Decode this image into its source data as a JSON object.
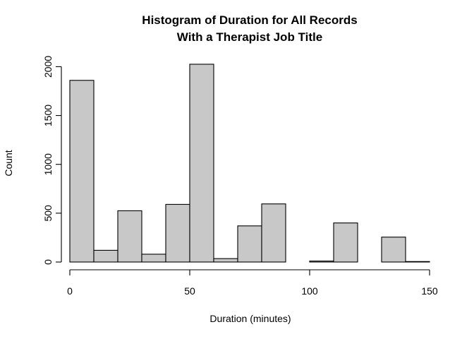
{
  "chart_data": {
    "type": "bar",
    "title_line1": "Histogram of Duration for All Records",
    "title_line2": "With a Therapist Job Title",
    "xlabel": "Duration (minutes)",
    "ylabel": "Count",
    "bin_width": 10,
    "bins": [
      {
        "start": 0,
        "end": 10,
        "count": 1860
      },
      {
        "start": 10,
        "end": 20,
        "count": 120
      },
      {
        "start": 20,
        "end": 30,
        "count": 525
      },
      {
        "start": 30,
        "end": 40,
        "count": 80
      },
      {
        "start": 40,
        "end": 50,
        "count": 590
      },
      {
        "start": 50,
        "end": 60,
        "count": 2025
      },
      {
        "start": 60,
        "end": 70,
        "count": 35
      },
      {
        "start": 70,
        "end": 80,
        "count": 370
      },
      {
        "start": 80,
        "end": 90,
        "count": 595
      },
      {
        "start": 90,
        "end": 100,
        "count": 0
      },
      {
        "start": 100,
        "end": 110,
        "count": 10
      },
      {
        "start": 110,
        "end": 120,
        "count": 400
      },
      {
        "start": 120,
        "end": 130,
        "count": 0
      },
      {
        "start": 130,
        "end": 140,
        "count": 255
      },
      {
        "start": 140,
        "end": 150,
        "count": 5
      },
      {
        "start": 150,
        "end": 160,
        "count": 0
      }
    ],
    "x_ticks": [
      {
        "value": 0,
        "label": "0"
      },
      {
        "value": 50,
        "label": "50"
      },
      {
        "value": 100,
        "label": "100"
      },
      {
        "value": 150,
        "label": "150"
      }
    ],
    "y_ticks": [
      {
        "value": 0,
        "label": "0"
      },
      {
        "value": 500,
        "label": "500"
      },
      {
        "value": 1000,
        "label": "1000"
      },
      {
        "value": 1500,
        "label": "1500"
      },
      {
        "value": 2000,
        "label": "2000"
      }
    ],
    "xlim": [
      0,
      160
    ],
    "ylim": [
      0,
      2050
    ],
    "grid": false,
    "bar_color": "#c8c8c8",
    "edge_color": "#000000"
  }
}
